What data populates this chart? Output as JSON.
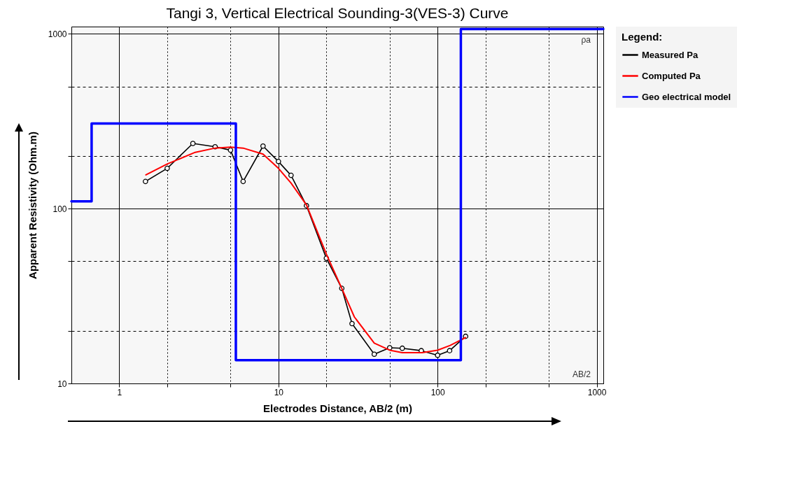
{
  "chart_data": {
    "type": "line",
    "title": "Tangi 3, Vertical Electrical Sounding-3(VES-3) Curve",
    "xlabel": "Electrodes Distance, AB/2 (m)",
    "ylabel": "Apparent Resistivity (Ohm.m)",
    "legend_title": "Legend:",
    "log": "xy",
    "grid": true,
    "legend": "right",
    "xlim": [
      0.5,
      1100
    ],
    "ylim": [
      10,
      1100
    ],
    "xticks": [
      1,
      {
        "value": 2,
        "label": null
      },
      {
        "value": 5,
        "label": null
      },
      10,
      {
        "value": 20,
        "label": null
      },
      {
        "value": 50,
        "label": null
      },
      100,
      {
        "value": 200,
        "label": null
      },
      {
        "value": 500,
        "label": null
      },
      1000
    ],
    "yticks": [
      10,
      {
        "value": 20,
        "label": null
      },
      {
        "value": 50,
        "label": null
      },
      100,
      {
        "value": 200,
        "label": null
      },
      {
        "value": 500,
        "label": null
      },
      1000
    ],
    "annotations": [
      "ρa",
      "AB/2"
    ],
    "series": [
      {
        "name": "Measured Pa",
        "color": "#000000",
        "marker": "circle",
        "x": [
          1.46,
          2,
          2.9,
          4,
          5,
          6,
          8,
          10,
          12,
          15,
          20,
          25,
          29,
          40,
          50,
          60,
          79,
          100,
          119,
          150
        ],
        "values": [
          143,
          170,
          236,
          226,
          216,
          143,
          228,
          186,
          155,
          104,
          52,
          35,
          22,
          14.7,
          16,
          15.9,
          15.4,
          14.5,
          15.4,
          18.6
        ]
      },
      {
        "name": "Computed Pa",
        "color": "#ff0000",
        "marker": "none",
        "x": [
          1.47,
          2,
          3,
          4,
          5,
          6,
          8,
          10,
          12,
          15,
          20,
          25,
          30,
          40,
          50,
          60,
          80,
          100,
          120,
          150
        ],
        "values": [
          156,
          180,
          210,
          222,
          225,
          222,
          205,
          170,
          140,
          105,
          55,
          35,
          24,
          17,
          15.5,
          15,
          15,
          15.5,
          16.5,
          18.3
        ]
      },
      {
        "name": "Geo electrical model",
        "color": "#0000ff",
        "type": "step",
        "marker": "none",
        "x": [
          0.5,
          0.67,
          5.4,
          140,
          1100
        ],
        "values": [
          110,
          307,
          13.6,
          1064,
          1064
        ]
      }
    ]
  }
}
